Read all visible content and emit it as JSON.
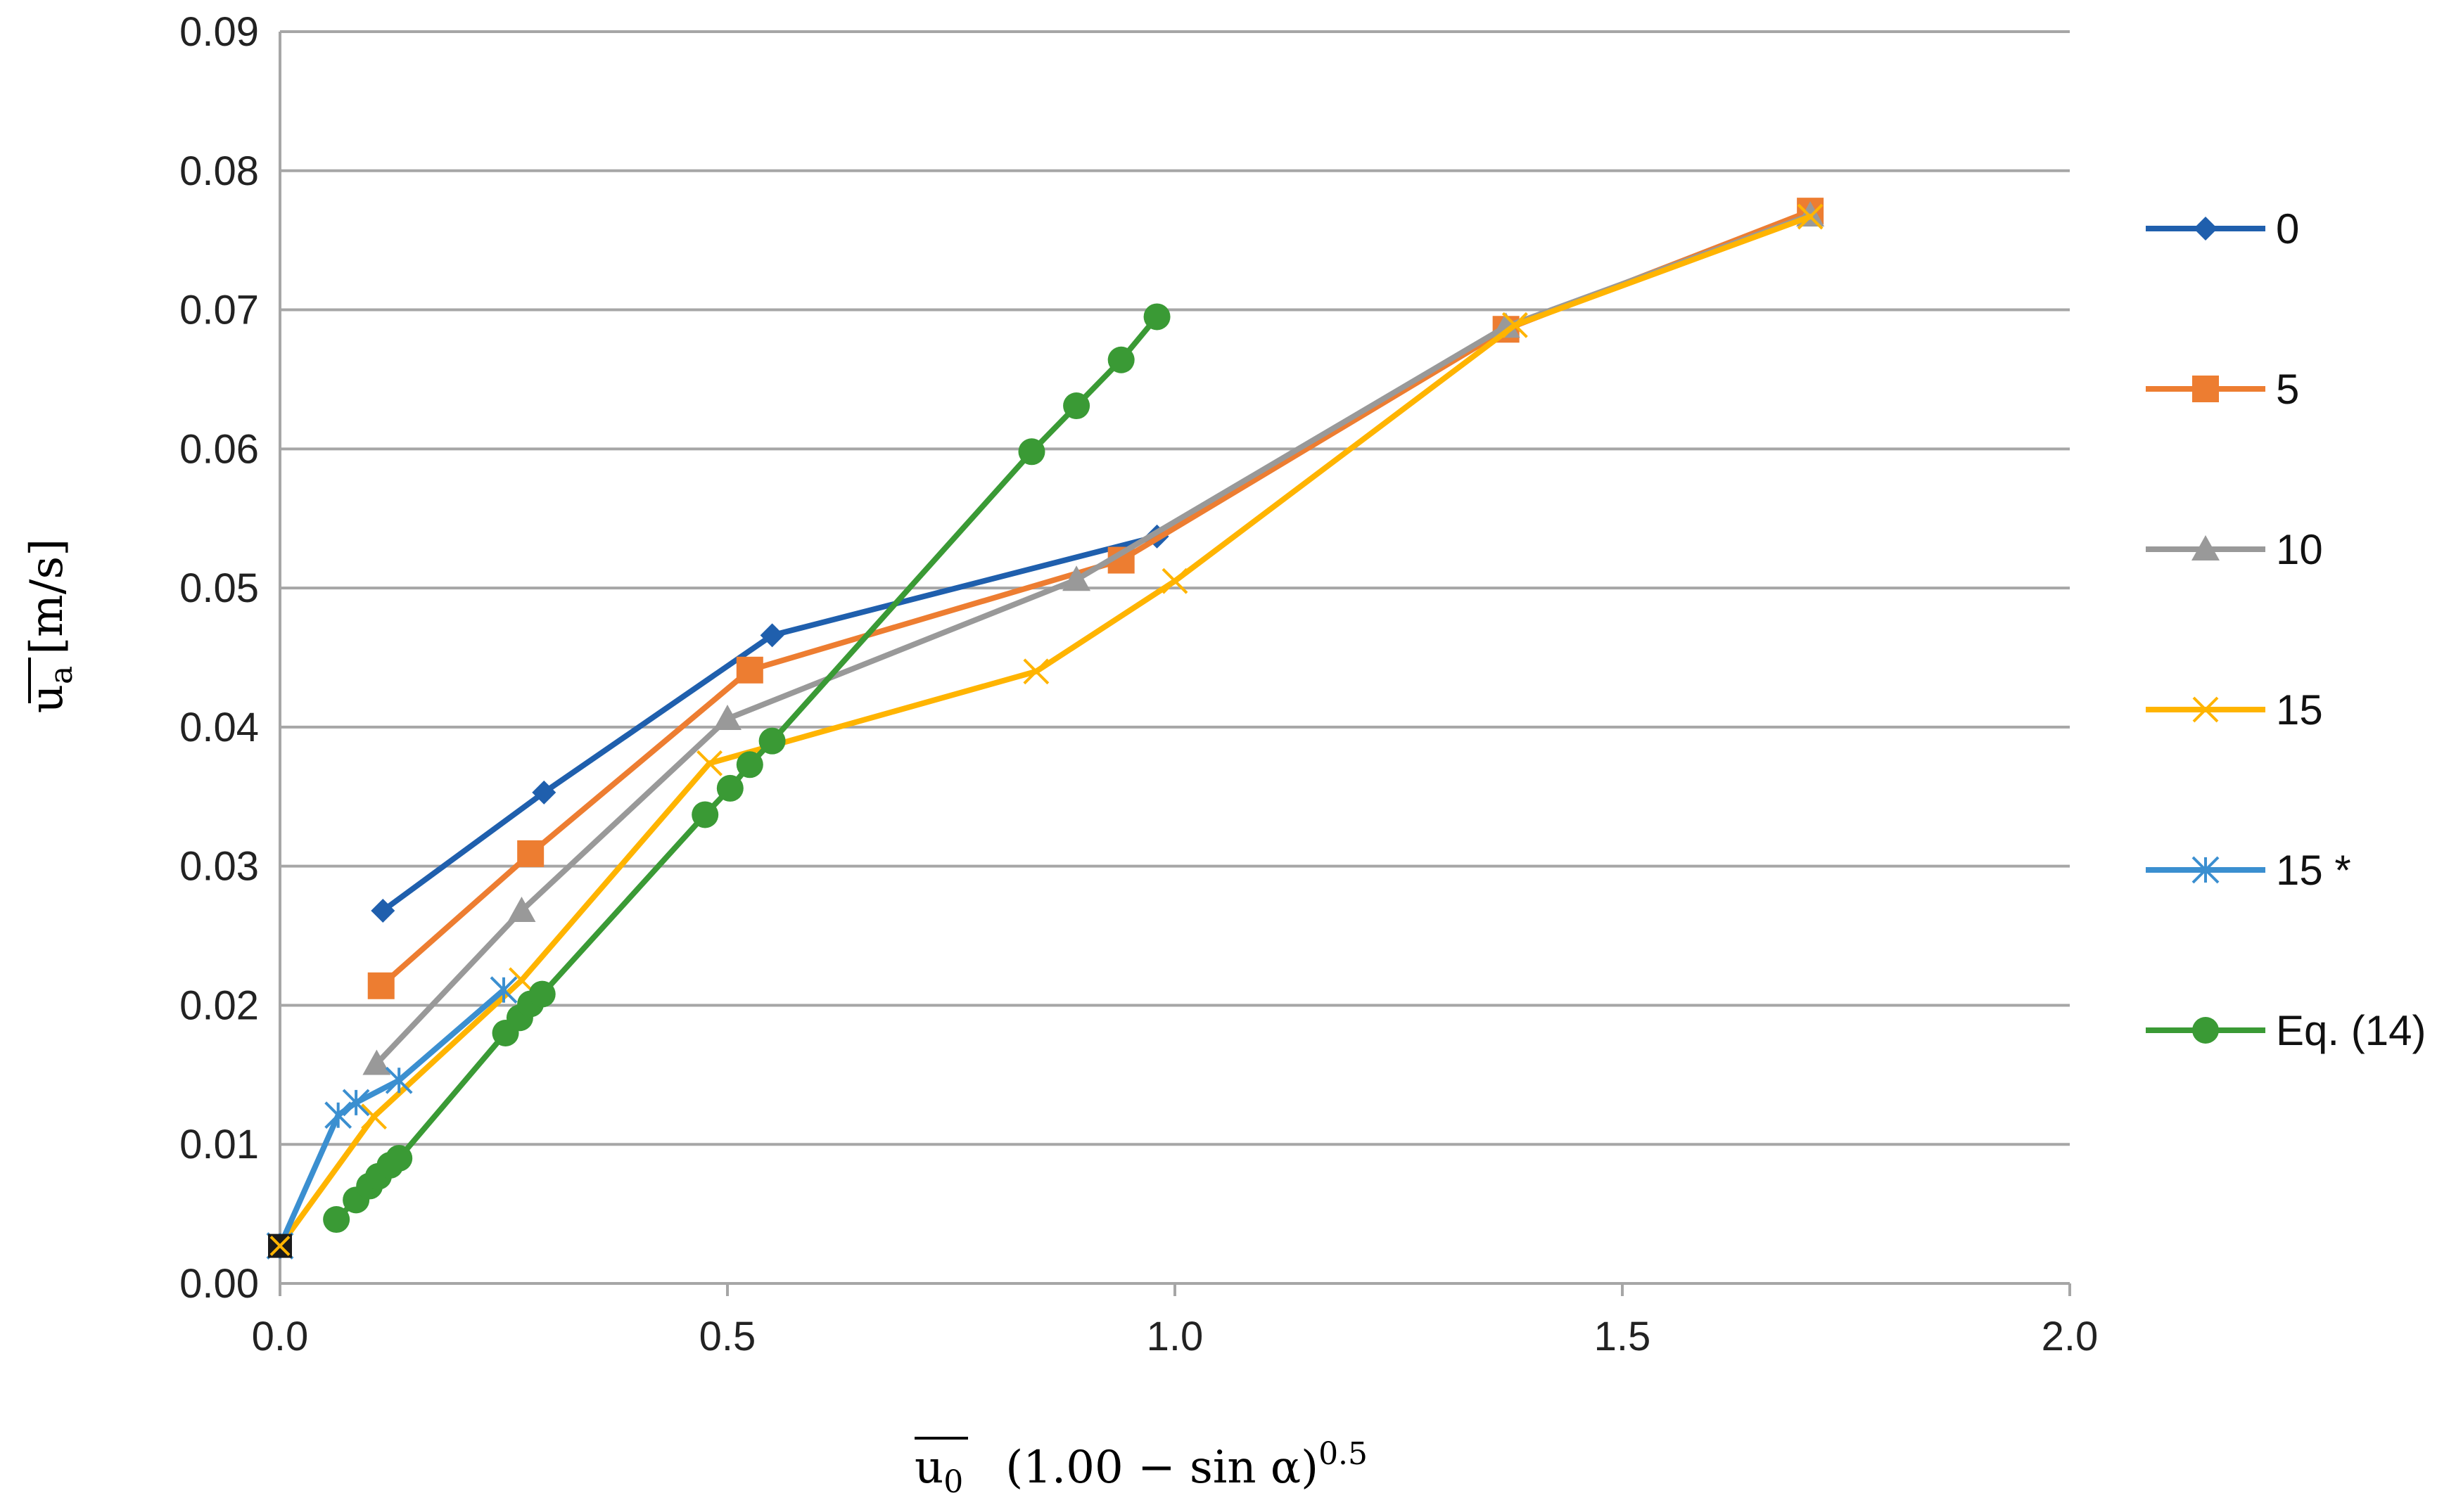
{
  "chart_data": {
    "type": "line",
    "title": "",
    "xlabel": {
      "main": "u",
      "sub": "0",
      "rest": "(1.00 − sin α)",
      "exponent": "0.5"
    },
    "ylabel": {
      "main": "u",
      "sub": "a",
      "rest": "[m/s]"
    },
    "xlim": [
      0,
      2.0
    ],
    "ylim": [
      0,
      0.09
    ],
    "xticks": [
      "0.0",
      "0.5",
      "1.0",
      "1.5",
      "2.0"
    ],
    "xtick_values": [
      0,
      0.5,
      1.0,
      1.5,
      2.0
    ],
    "yticks": [
      "0.00",
      "0.01",
      "0.02",
      "0.03",
      "0.04",
      "0.05",
      "0.06",
      "0.07",
      "0.08",
      "0.09"
    ],
    "ytick_values": [
      0,
      0.01,
      0.02,
      0.03,
      0.04,
      0.05,
      0.06,
      0.07,
      0.08,
      0.09
    ],
    "grid": "horizontal",
    "legend_position": "right",
    "series": [
      {
        "name": "0",
        "color": "#1f5fad",
        "marker": "diamond",
        "points": [
          [
            0.115,
            0.0268
          ],
          [
            0.295,
            0.0353
          ],
          [
            0.55,
            0.0466
          ],
          [
            0.98,
            0.0537
          ]
        ]
      },
      {
        "name": "5",
        "color": "#ed7d31",
        "marker": "square",
        "points": [
          [
            0.113,
            0.0214
          ],
          [
            0.28,
            0.0309
          ],
          [
            0.525,
            0.0441
          ],
          [
            0.94,
            0.052
          ],
          [
            1.37,
            0.0686
          ],
          [
            1.71,
            0.0771
          ]
        ]
      },
      {
        "name": "10",
        "color": "#999999",
        "marker": "triangle",
        "points": [
          [
            0.108,
            0.0158
          ],
          [
            0.27,
            0.0268
          ],
          [
            0.5,
            0.0406
          ],
          [
            0.89,
            0.0506
          ],
          [
            1.37,
            0.0688
          ],
          [
            1.71,
            0.0768
          ]
        ]
      },
      {
        "name": "15",
        "color": "#ffb400",
        "marker": "x",
        "points": [
          [
            0.0,
            0.0027
          ],
          [
            0.105,
            0.012
          ],
          [
            0.27,
            0.0218
          ],
          [
            0.48,
            0.0374
          ],
          [
            0.845,
            0.044
          ],
          [
            1.0,
            0.0505
          ],
          [
            1.38,
            0.0689
          ],
          [
            1.71,
            0.0767
          ]
        ]
      },
      {
        "name": "15 *",
        "color": "#3b8fd0",
        "marker": "asterisk",
        "points": [
          [
            0.0,
            0.0027
          ],
          [
            0.065,
            0.0121
          ],
          [
            0.085,
            0.013
          ],
          [
            0.133,
            0.0146
          ],
          [
            0.25,
            0.0211
          ]
        ]
      },
      {
        "name": "Eq. (14)",
        "color": "#3a9a35",
        "marker": "circle",
        "points": [
          [
            0.063,
            0.0046
          ],
          [
            0.085,
            0.006
          ],
          [
            0.1,
            0.007
          ],
          [
            0.11,
            0.0077
          ],
          [
            0.123,
            0.0085
          ],
          [
            0.133,
            0.009
          ],
          [
            0.252,
            0.018
          ],
          [
            0.268,
            0.0191
          ],
          [
            0.28,
            0.0201
          ],
          [
            0.293,
            0.0208
          ],
          [
            0.475,
            0.0337
          ],
          [
            0.503,
            0.0356
          ],
          [
            0.525,
            0.0373
          ],
          [
            0.55,
            0.039
          ],
          [
            0.84,
            0.0598
          ],
          [
            0.89,
            0.0631
          ],
          [
            0.94,
            0.0664
          ],
          [
            0.98,
            0.0695
          ]
        ]
      }
    ]
  }
}
